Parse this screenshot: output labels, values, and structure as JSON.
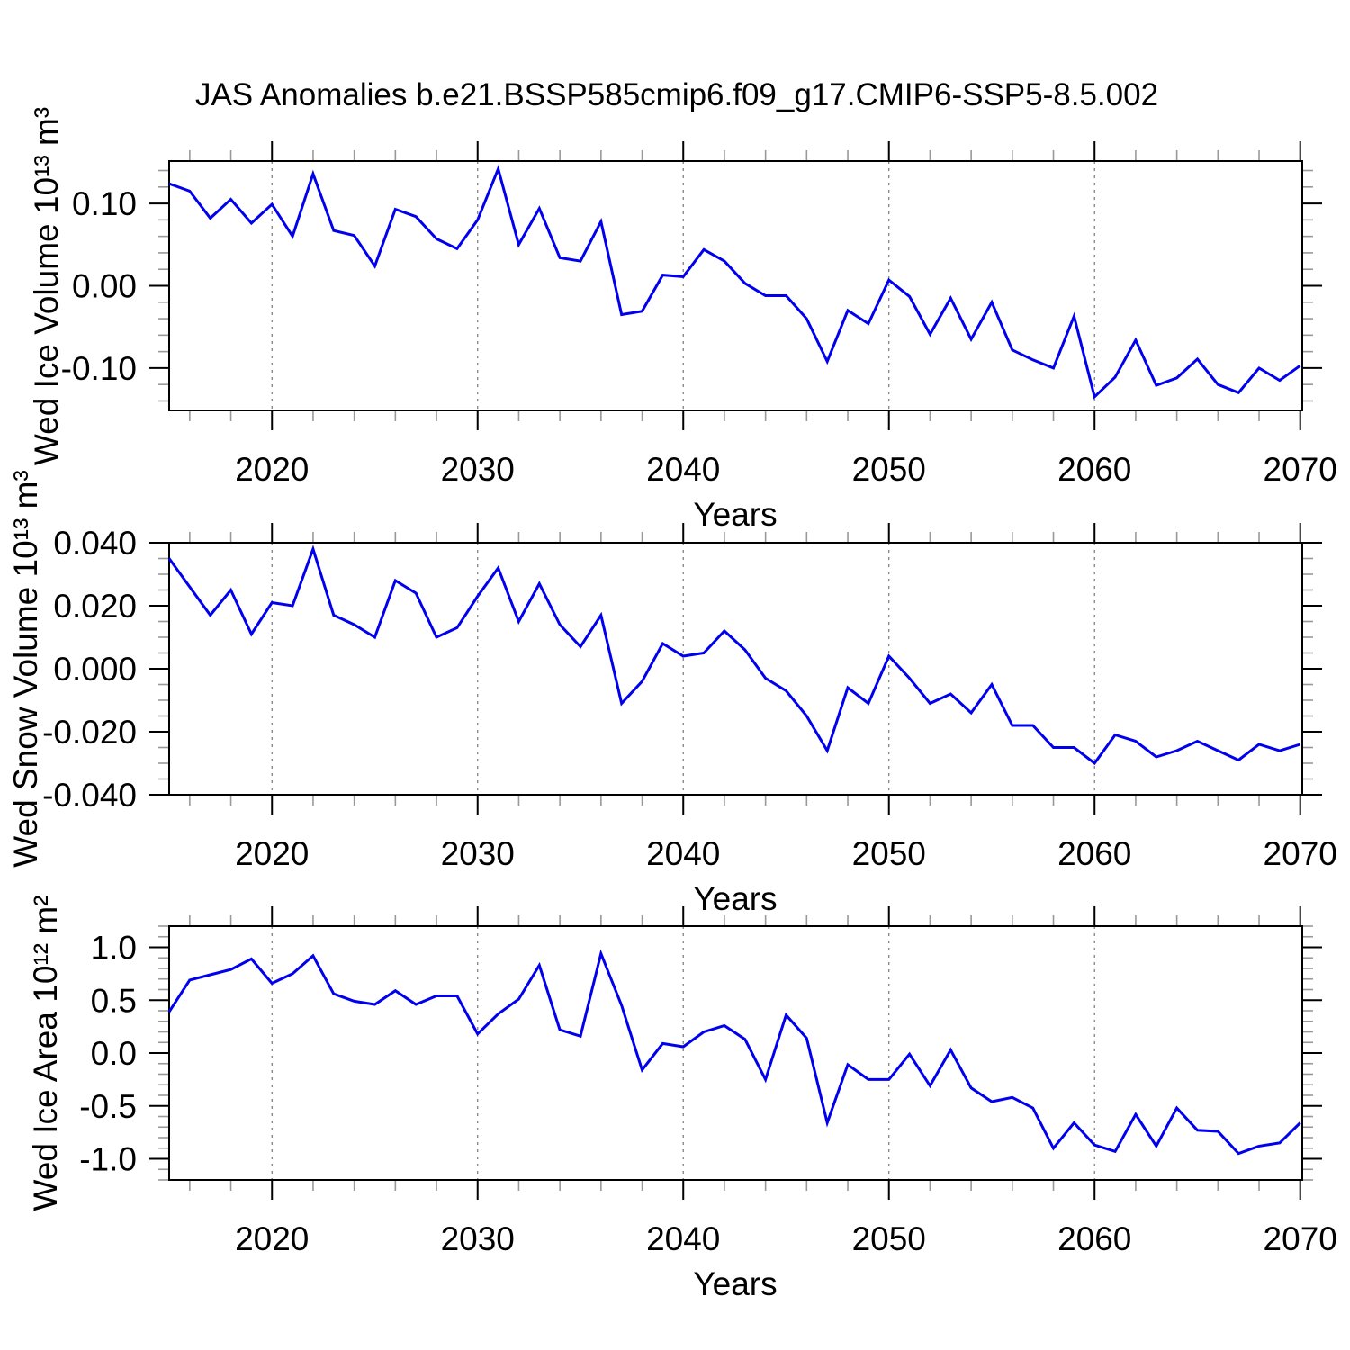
{
  "title": "JAS Anomalies b.e21.BSSP585cmip6.f09_g17.CMIP6-SSP5-8.5.002",
  "line_color": "#0000ee",
  "grid_color": "#777777",
  "axis_color": "#000000",
  "minor_tick_color": "#999999",
  "chart_data": [
    {
      "type": "line",
      "name": "ice-volume",
      "ylabel": "Wed Ice Volume 10¹³ m³",
      "xlabel": "Years",
      "x_years": {
        "start": 2015,
        "end": 2070,
        "step": 1
      },
      "values": [
        0.124,
        0.115,
        0.082,
        0.105,
        0.076,
        0.099,
        0.06,
        0.136,
        0.067,
        0.061,
        0.024,
        0.093,
        0.084,
        0.057,
        0.045,
        0.08,
        0.142,
        0.05,
        0.094,
        0.034,
        0.03,
        0.078,
        -0.035,
        -0.031,
        0.013,
        0.011,
        0.044,
        0.03,
        0.003,
        -0.012,
        -0.012,
        -0.04,
        -0.092,
        -0.03,
        -0.046,
        0.007,
        -0.013,
        -0.059,
        -0.015,
        -0.065,
        -0.02,
        -0.078,
        -0.09,
        -0.1,
        -0.037,
        -0.135,
        -0.111,
        -0.066,
        -0.121,
        -0.112,
        -0.089,
        -0.12,
        -0.13,
        -0.1,
        -0.115,
        -0.097
      ],
      "xlim": [
        2015,
        2070.1
      ],
      "ylim": [
        -0.1515,
        0.1515
      ],
      "yticks_major": [
        0.1,
        0.0,
        -0.1
      ],
      "ytick_labels": [
        "0.10",
        "0.00",
        "-0.10"
      ],
      "ytick_minor_step": 0.02,
      "xticks_major": [
        2020,
        2030,
        2040,
        2050,
        2060,
        2070
      ],
      "xtick_labels": [
        "2020",
        "2030",
        "2040",
        "2050",
        "2060",
        "2070"
      ],
      "xtick_minor_step": 2,
      "grid_x": [
        2020,
        2030,
        2040,
        2050,
        2060
      ],
      "grid_style": "dashed-vertical"
    },
    {
      "type": "line",
      "name": "snow-volume",
      "ylabel": "Wed Snow Volume 10¹³ m³",
      "xlabel": "Years",
      "x_years": {
        "start": 2015,
        "end": 2070,
        "step": 1
      },
      "values": [
        0.035,
        0.026,
        0.017,
        0.025,
        0.011,
        0.021,
        0.02,
        0.038,
        0.017,
        0.014,
        0.01,
        0.028,
        0.024,
        0.01,
        0.013,
        0.023,
        0.032,
        0.015,
        0.027,
        0.014,
        0.007,
        0.017,
        -0.011,
        -0.004,
        0.008,
        0.004,
        0.005,
        0.012,
        0.006,
        -0.003,
        -0.007,
        -0.015,
        -0.026,
        -0.006,
        -0.011,
        0.004,
        -0.003,
        -0.011,
        -0.008,
        -0.014,
        -0.005,
        -0.018,
        -0.018,
        -0.025,
        -0.025,
        -0.03,
        -0.021,
        -0.023,
        -0.028,
        -0.026,
        -0.023,
        -0.026,
        -0.029,
        -0.024,
        -0.026,
        -0.024
      ],
      "xlim": [
        2015,
        2070.1
      ],
      "ylim": [
        -0.04,
        0.04
      ],
      "yticks_major": [
        0.04,
        0.02,
        0.0,
        -0.02,
        -0.04
      ],
      "ytick_labels": [
        "0.040",
        "0.020",
        "0.000",
        "-0.020",
        "-0.040"
      ],
      "ytick_minor_step": 0.005,
      "xticks_major": [
        2020,
        2030,
        2040,
        2050,
        2060,
        2070
      ],
      "xtick_labels": [
        "2020",
        "2030",
        "2040",
        "2050",
        "2060",
        "2070"
      ],
      "xtick_minor_step": 2,
      "grid_x": [
        2020,
        2030,
        2040,
        2050,
        2060
      ],
      "grid_style": "dashed-vertical"
    },
    {
      "type": "line",
      "name": "ice-area",
      "ylabel": "Wed Ice Area 10¹² m²",
      "xlabel": "Years",
      "x_years": {
        "start": 2015,
        "end": 2070,
        "step": 1
      },
      "values": [
        0.39,
        0.69,
        0.74,
        0.79,
        0.89,
        0.66,
        0.75,
        0.92,
        0.56,
        0.49,
        0.46,
        0.59,
        0.46,
        0.54,
        0.54,
        0.18,
        0.37,
        0.51,
        0.83,
        0.22,
        0.16,
        0.94,
        0.45,
        -0.16,
        0.09,
        0.06,
        0.2,
        0.26,
        0.13,
        -0.25,
        0.36,
        0.14,
        -0.66,
        -0.11,
        -0.25,
        -0.25,
        -0.01,
        -0.31,
        0.03,
        -0.33,
        -0.46,
        -0.42,
        -0.52,
        -0.9,
        -0.66,
        -0.87,
        -0.93,
        -0.58,
        -0.88,
        -0.52,
        -0.73,
        -0.74,
        -0.95,
        -0.88,
        -0.85,
        -0.66
      ],
      "xlim": [
        2015,
        2070.1
      ],
      "ylim": [
        -1.2,
        1.2
      ],
      "yticks_major": [
        1.0,
        0.5,
        0.0,
        -0.5,
        -1.0
      ],
      "ytick_labels": [
        "1.0",
        "0.5",
        "0.0",
        "-0.5",
        "-1.0"
      ],
      "ytick_minor_step": 0.1,
      "xticks_major": [
        2020,
        2030,
        2040,
        2050,
        2060,
        2070
      ],
      "xtick_labels": [
        "2020",
        "2030",
        "2040",
        "2050",
        "2060",
        "2070"
      ],
      "xtick_minor_step": 2,
      "grid_x": [
        2020,
        2030,
        2040,
        2050,
        2060
      ],
      "grid_style": "dashed-vertical"
    }
  ]
}
